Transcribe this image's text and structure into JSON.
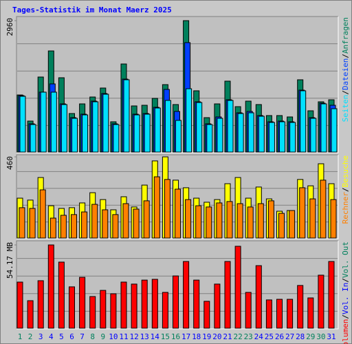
{
  "title": "Tages-Statistik im Monat Maerz 2025",
  "legend_separator": "/",
  "chart_data": [
    {
      "type": "bar",
      "grid": true,
      "ylim": [
        0,
        2960
      ],
      "yticks": [
        2960
      ],
      "series": [
        {
          "name": "Anfragen",
          "color": "#00805c",
          "values": [
            1286,
            698,
            1690,
            2278,
            1674,
            868,
            1085,
            1240,
            1442,
            682,
            1984,
            1039,
            1054,
            1209,
            1519,
            1070,
            2960,
            1380,
            775,
            1085,
            1597,
            1023,
            1147,
            1070,
            822,
            822,
            791,
            1628,
            930,
            1132,
            1178
          ]
        },
        {
          "name": "Dateien",
          "color": "#0040ff",
          "values": [
            1271,
            636,
            1349,
            1535,
            1085,
            775,
            853,
            1147,
            1318,
            636,
            1643,
            853,
            868,
            1008,
            1411,
            915,
            2465,
            1132,
            636,
            791,
            1178,
            884,
            915,
            822,
            682,
            698,
            682,
            1395,
            775,
            1101,
            1054
          ]
        },
        {
          "name": "Seiten",
          "color": "#00e0ff",
          "values": [
            1256,
            620,
            1349,
            1349,
            1070,
            760,
            837,
            1132,
            1302,
            620,
            1628,
            837,
            853,
            992,
            1163,
            713,
            1426,
            1116,
            620,
            760,
            1163,
            868,
            884,
            806,
            667,
            682,
            667,
            1380,
            760,
            1085,
            977
          ]
        }
      ]
    },
    {
      "type": "bar",
      "grid": true,
      "ylim": [
        0,
        460
      ],
      "yticks": [
        460
      ],
      "series": [
        {
          "name": "Besuche",
          "color": "#ffff00",
          "values": [
            226,
            215,
            343,
            183,
            168,
            172,
            199,
            257,
            218,
            160,
            234,
            176,
            300,
            437,
            460,
            328,
            285,
            226,
            203,
            218,
            308,
            343,
            226,
            289,
            222,
            152,
            156,
            332,
            296,
            421,
            308
          ]
        },
        {
          "name": "Rechner",
          "color": "#ff8000",
          "values": [
            172,
            168,
            273,
            113,
            129,
            133,
            148,
            191,
            160,
            133,
            195,
            164,
            211,
            347,
            332,
            277,
            218,
            183,
            176,
            199,
            207,
            195,
            176,
            195,
            211,
            140,
            156,
            285,
            222,
            328,
            218
          ]
        }
      ]
    },
    {
      "type": "bar",
      "grid": true,
      "ylim": [
        0,
        54.17
      ],
      "yticks": [
        {
          "value": 54.17,
          "label": "54.17 MB"
        }
      ],
      "categories": [
        "1",
        "2",
        "3",
        "4",
        "5",
        "6",
        "7",
        "8",
        "9",
        "10",
        "11",
        "12",
        "13",
        "14",
        "15",
        "16",
        "17",
        "18",
        "19",
        "20",
        "21",
        "22",
        "23",
        "24",
        "25",
        "26",
        "27",
        "28",
        "29",
        "30",
        "31"
      ],
      "category_colors": [
        "#00805c",
        "#00805c",
        "#0000ff",
        "#0000ff",
        "#0000ff",
        "#0000ff",
        "#0000ff",
        "#00805c",
        "#00805c",
        "#0000ff",
        "#0000ff",
        "#0000ff",
        "#0000ff",
        "#0000ff",
        "#00805c",
        "#00805c",
        "#0000ff",
        "#0000ff",
        "#0000ff",
        "#0000ff",
        "#0000ff",
        "#00805c",
        "#00805c",
        "#0000ff",
        "#0000ff",
        "#0000ff",
        "#0000ff",
        "#0000ff",
        "#00805c",
        "#00805c",
        "#0000ff"
      ],
      "series": [
        {
          "name": "Volumen",
          "color": "#ff0000",
          "values": [
            30.0,
            17.9,
            30.9,
            54.17,
            43.0,
            26.9,
            33.1,
            20.6,
            24.6,
            22.4,
            30.0,
            28.7,
            31.3,
            31.8,
            23.3,
            34.0,
            43.4,
            31.3,
            17.5,
            28.7,
            43.4,
            53.3,
            23.3,
            40.7,
            18.4,
            18.8,
            18.8,
            27.8,
            19.7,
            34.5,
            43.4
          ]
        }
      ],
      "extra_legend": [
        {
          "name": "Vol. In",
          "color": "#0000ff"
        },
        {
          "name": "Vol. Out",
          "color": "#00805c"
        }
      ]
    }
  ]
}
